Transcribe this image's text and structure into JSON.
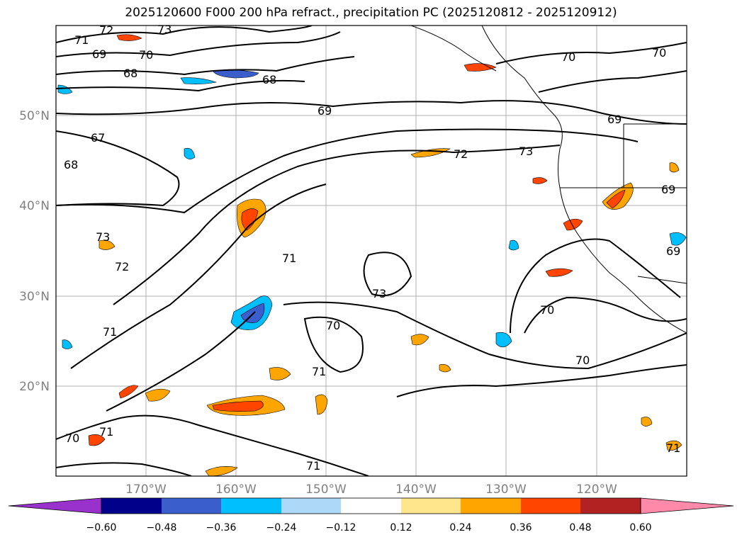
{
  "title": "2025120600 F000 200 hPa refract., precipitation PC (2025120812 - 2025120912)",
  "map": {
    "lat_labels": [
      "50°N",
      "40°N",
      "30°N",
      "20°N"
    ],
    "lon_labels": [
      "170°W",
      "160°W",
      "150°W",
      "140°W",
      "130°W",
      "120°W"
    ],
    "contour_labels": [
      "72",
      "73",
      "71",
      "69",
      "70",
      "68",
      "68",
      "69",
      "67",
      "68",
      "72",
      "73",
      "69",
      "70",
      "70",
      "73",
      "72",
      "71",
      "73",
      "70",
      "71",
      "71",
      "70",
      "70",
      "71",
      "70",
      "71",
      "69",
      "69",
      "71"
    ],
    "colors": {
      "contour": "#000000",
      "grid": "#b0b0b0",
      "coast": "#000000"
    }
  },
  "colorbar": {
    "ticks": [
      "−0.60",
      "−0.48",
      "−0.36",
      "−0.24",
      "−0.12",
      "0.12",
      "0.24",
      "0.36",
      "0.48",
      "0.60"
    ],
    "colors": [
      "#9932cc",
      "#00008b",
      "#3a5fcd",
      "#00bfff",
      "#add8f8",
      "#ffffff",
      "#ffe68c",
      "#ffa500",
      "#ff4500",
      "#b22222",
      "#ff89a8"
    ]
  }
}
